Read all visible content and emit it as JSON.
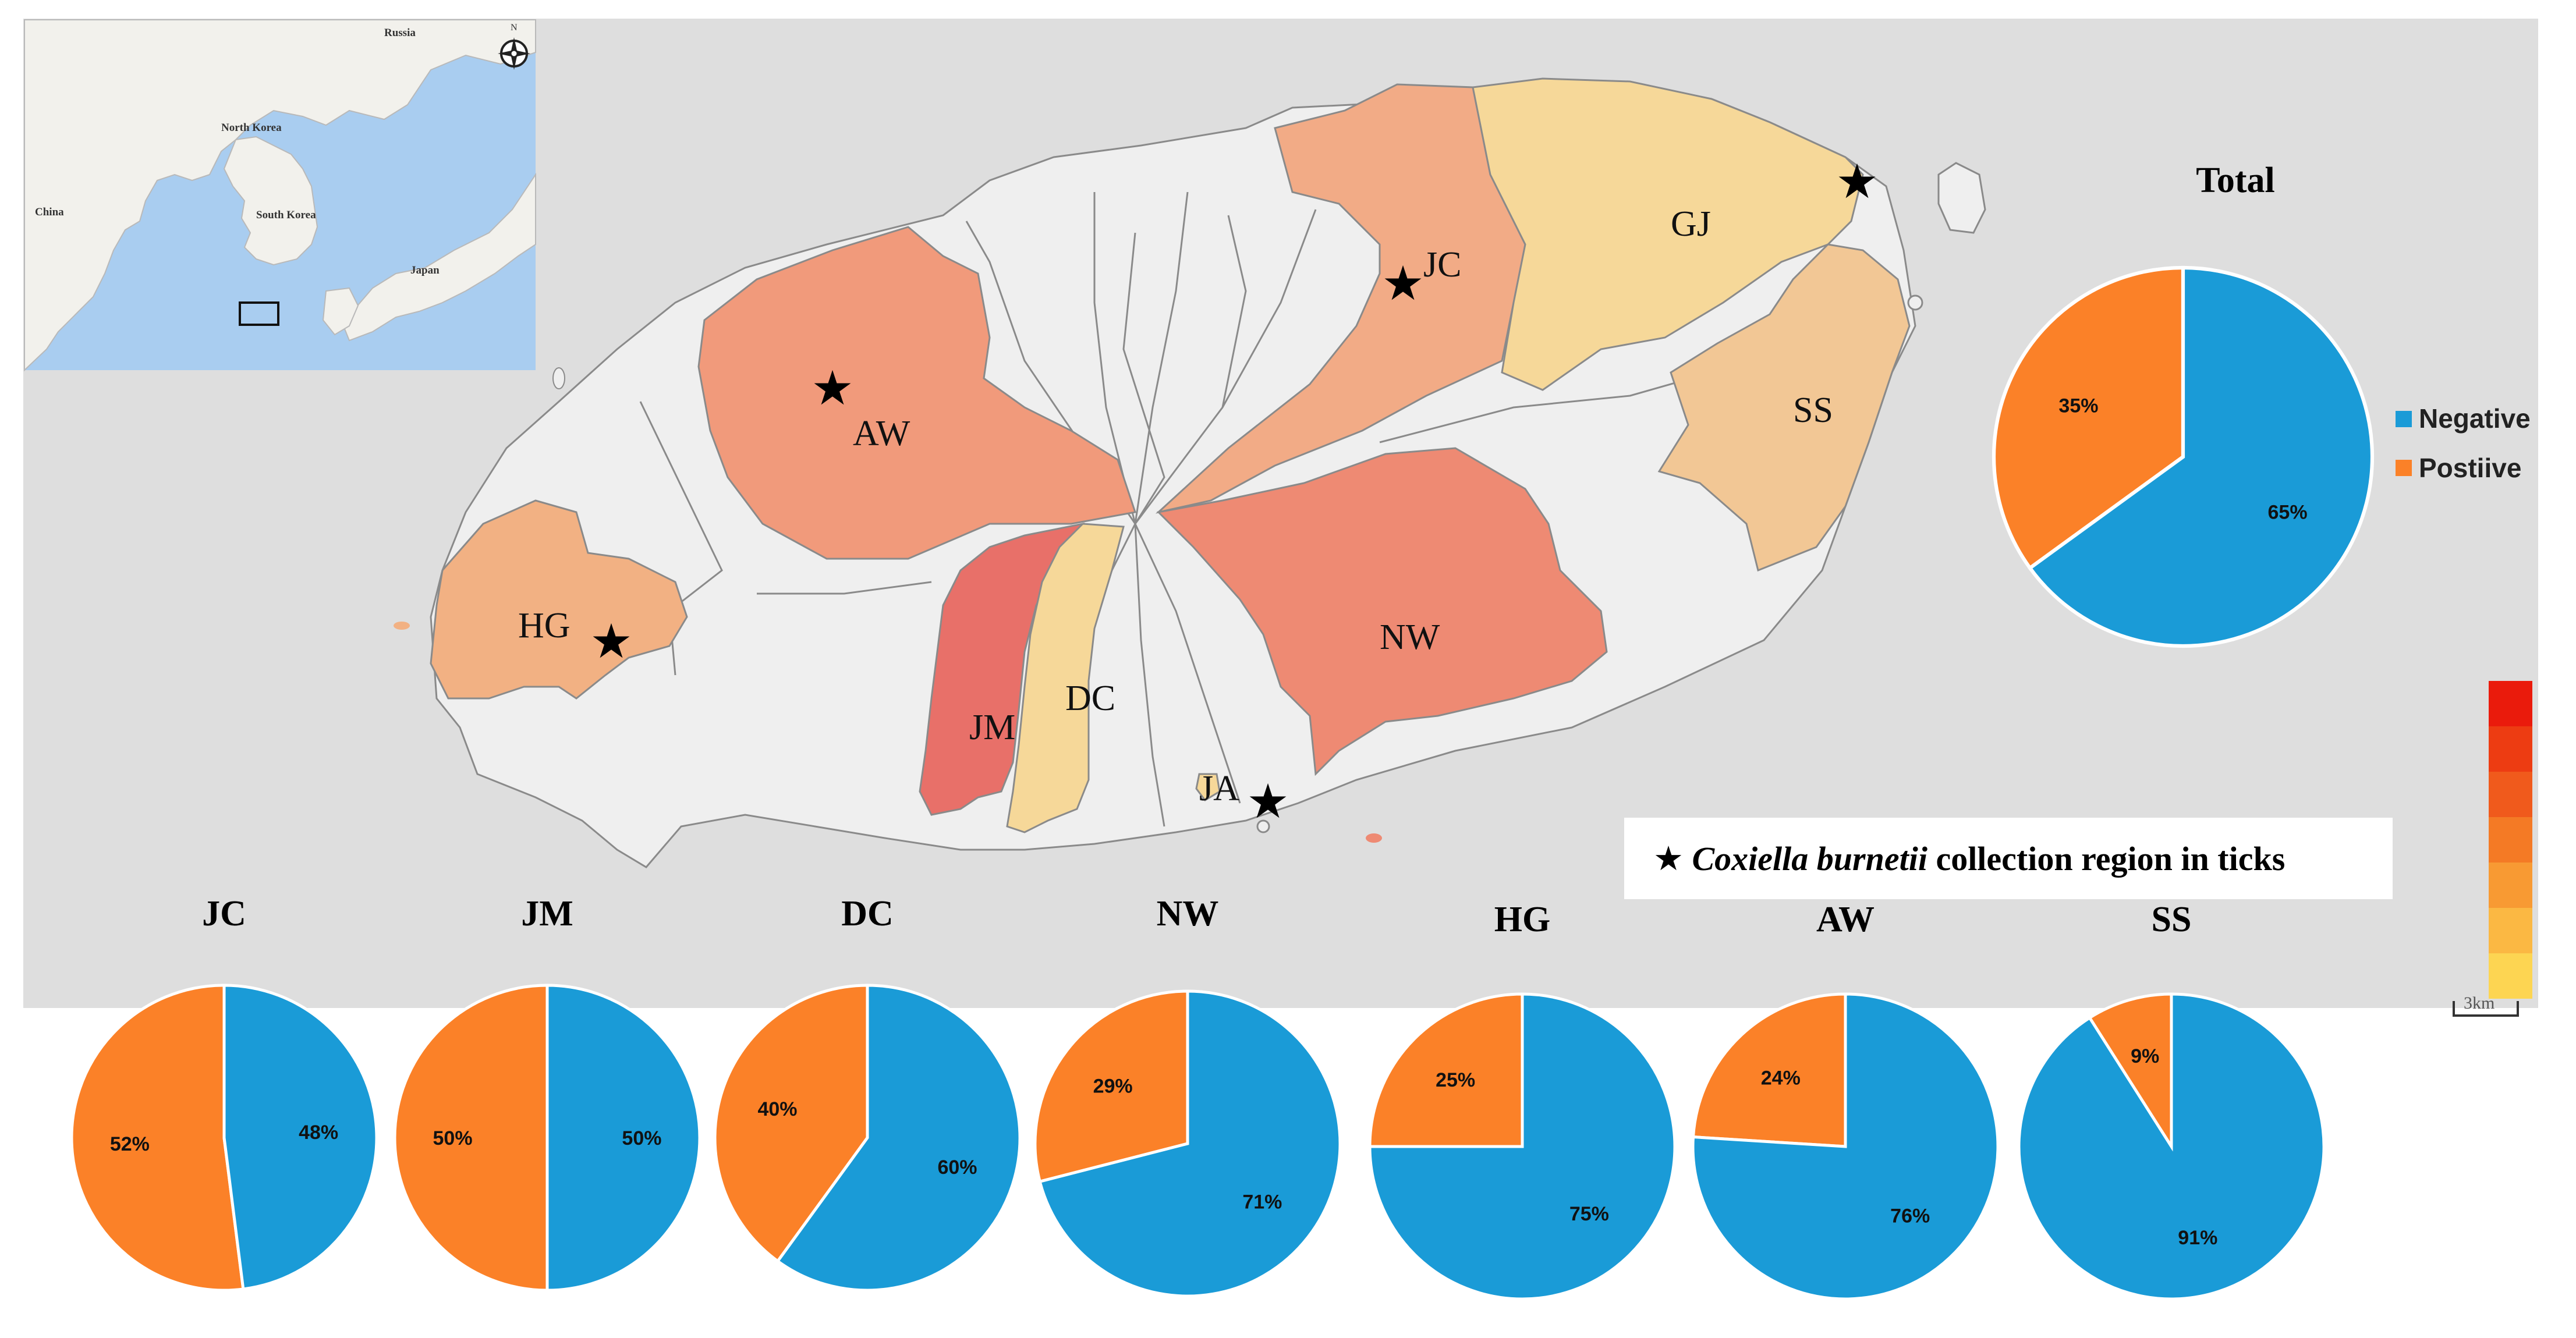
{
  "colors": {
    "negative": "#1a9bd7",
    "positive": "#fb8128",
    "map_background": "#dedede",
    "inset_sea": "#a9cdf0",
    "inset_land": "#f2f1ec",
    "region_default": "#efefef",
    "region_border": "#8a8a8a"
  },
  "inset_map": {
    "labels": [
      "Russia",
      "North Korea",
      "South Korea",
      "China",
      "Japan"
    ],
    "compass_label": "N",
    "compass_icon": "compass-icon"
  },
  "regions": [
    {
      "code": "JC",
      "color": "#f2ab86",
      "star": true
    },
    {
      "code": "GJ",
      "color": "#f6d899",
      "star": true
    },
    {
      "code": "AW",
      "color": "#f19a7b",
      "star": true
    },
    {
      "code": "SS",
      "color": "#f2c795",
      "star": false
    },
    {
      "code": "HG",
      "color": "#f2b183",
      "star": true
    },
    {
      "code": "NW",
      "color": "#ee8a73",
      "star": false
    },
    {
      "code": "JM",
      "color": "#e87069",
      "star": false
    },
    {
      "code": "DC",
      "color": "#f6d899",
      "star": false
    },
    {
      "code": "JA",
      "color": "#f6d899",
      "star": true
    }
  ],
  "star_legend": {
    "icon": "star-icon",
    "species": "Coxiella burnetii",
    "text": "collection region in ticks"
  },
  "color_scale": {
    "colors": [
      "#ea1b0c",
      "#ed3c12",
      "#f05a1c",
      "#f47a25",
      "#f89a33",
      "#fbb843",
      "#fdd552"
    ],
    "scale_label": "3km"
  },
  "legend": {
    "negative_label": "Negative",
    "positive_label": "Postiive"
  },
  "chart_data": [
    {
      "type": "pie",
      "title": "Total",
      "categories": [
        "Negative",
        "Postiive"
      ],
      "values": [
        65,
        35
      ],
      "labels": [
        "65%",
        "35%"
      ]
    },
    {
      "type": "pie",
      "title": "JC",
      "categories": [
        "Negative",
        "Postiive"
      ],
      "values": [
        48,
        52
      ],
      "labels": [
        "48%",
        "52%"
      ]
    },
    {
      "type": "pie",
      "title": "JM",
      "categories": [
        "Negative",
        "Postiive"
      ],
      "values": [
        50,
        50
      ],
      "labels": [
        "50%",
        "50%"
      ]
    },
    {
      "type": "pie",
      "title": "DC",
      "categories": [
        "Negative",
        "Postiive"
      ],
      "values": [
        60,
        40
      ],
      "labels": [
        "60%",
        "40%"
      ]
    },
    {
      "type": "pie",
      "title": "NW",
      "categories": [
        "Negative",
        "Postiive"
      ],
      "values": [
        71,
        29
      ],
      "labels": [
        "71%",
        "29%"
      ]
    },
    {
      "type": "pie",
      "title": "HG",
      "categories": [
        "Negative",
        "Postiive"
      ],
      "values": [
        75,
        25
      ],
      "labels": [
        "75%",
        "25%"
      ]
    },
    {
      "type": "pie",
      "title": "AW",
      "categories": [
        "Negative",
        "Postiive"
      ],
      "values": [
        76,
        24
      ],
      "labels": [
        "76%",
        "24%"
      ]
    },
    {
      "type": "pie",
      "title": "SS",
      "categories": [
        "Negative",
        "Postiive"
      ],
      "values": [
        91,
        9
      ],
      "labels": [
        "91%",
        "9%"
      ]
    }
  ]
}
